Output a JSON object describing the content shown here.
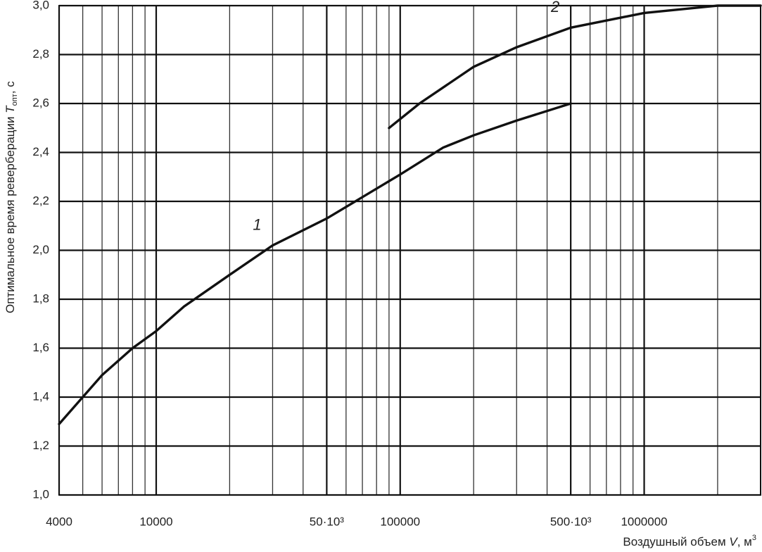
{
  "chart_data": {
    "type": "line",
    "log_x": true,
    "grid": true,
    "xlabel": {
      "text": "Воздушный объем ",
      "symbol": "V",
      "unit": ", м",
      "power": "3"
    },
    "ylabel": {
      "text": "Оптимальное время реверберации ",
      "symbol": "T",
      "subscript": "опт",
      "unit": ", с"
    },
    "xlim": [
      4000,
      3000000
    ],
    "xticks": [
      4000,
      10000,
      {
        "value": 50000,
        "label": "50·10³"
      },
      100000,
      {
        "value": 500000,
        "label": "500·10³"
      },
      1000000
    ],
    "ylim": [
      1.0,
      3.0
    ],
    "yticks": [
      {
        "value": 1.0,
        "label": "1,0"
      },
      {
        "value": 1.2,
        "label": "1,2"
      },
      {
        "value": 1.4,
        "label": "1,4"
      },
      {
        "value": 1.6,
        "label": "1,6"
      },
      {
        "value": 1.8,
        "label": "1,8"
      },
      {
        "value": 2.0,
        "label": "2,0"
      },
      {
        "value": 2.2,
        "label": "2,2"
      },
      {
        "value": 2.4,
        "label": "2,4"
      },
      {
        "value": 2.6,
        "label": "2,6"
      },
      {
        "value": 2.8,
        "label": "2,8"
      },
      {
        "value": 3.0,
        "label": "3,0"
      }
    ],
    "series": [
      {
        "name": "1",
        "color": "#111111",
        "x": [
          4000,
          5000,
          6000,
          8000,
          10000,
          13000,
          20000,
          30000,
          50000,
          100000,
          150000,
          200000,
          300000,
          500000
        ],
        "values": [
          1.29,
          1.4,
          1.49,
          1.6,
          1.67,
          1.77,
          1.9,
          2.02,
          2.13,
          2.31,
          2.42,
          2.47,
          2.53,
          2.6
        ]
      },
      {
        "name": "2",
        "color": "#111111",
        "x": [
          90000,
          120000,
          200000,
          300000,
          500000,
          1000000,
          2000000,
          3000000
        ],
        "values": [
          2.5,
          2.6,
          2.75,
          2.83,
          2.91,
          2.97,
          3.0,
          3.0
        ]
      }
    ]
  }
}
